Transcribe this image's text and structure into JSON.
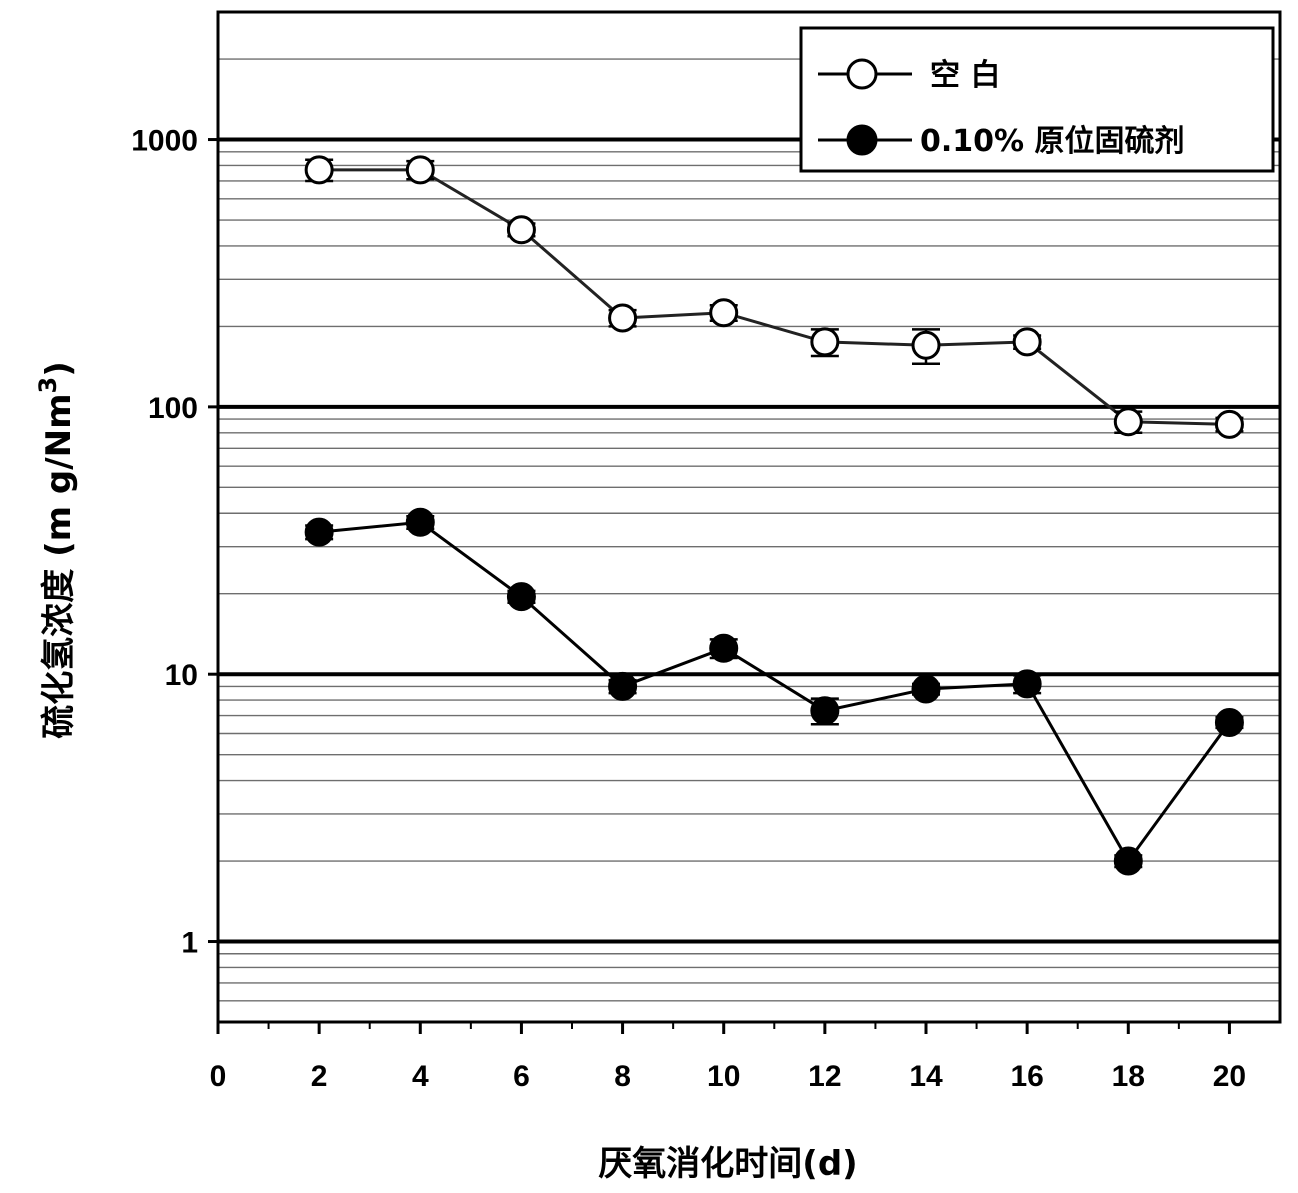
{
  "chart_data": {
    "type": "line",
    "title": "",
    "xlabel": "厌氧消化时间(d)",
    "ylabel": "硫化氢浓度 (m g/Nm³)",
    "ylabel_main": "硫化氢浓度 (m g/Nm",
    "ylabel_sup": "3",
    "ylabel_close": ")",
    "xlim": [
      0,
      21
    ],
    "ylim": [
      0.5,
      3000
    ],
    "yscale": "log",
    "xticks": [
      0,
      2,
      4,
      6,
      8,
      10,
      12,
      14,
      16,
      18,
      20
    ],
    "yticks": [
      1,
      10,
      100,
      1000
    ],
    "grid": "horizontal, log scale (major and minor)",
    "legend_position": "top-right",
    "series": [
      {
        "name": "空 白",
        "marker": "open-circle",
        "x": [
          2,
          4,
          6,
          8,
          10,
          12,
          14,
          16,
          18,
          20
        ],
        "y": [
          770,
          770,
          460,
          215,
          225,
          175,
          170,
          175,
          88,
          86
        ],
        "err": [
          70,
          60,
          25,
          15,
          15,
          20,
          25,
          10,
          8,
          5
        ]
      },
      {
        "name": "0.10% 原位固硫剂",
        "marker": "filled-circle",
        "x": [
          2,
          4,
          6,
          8,
          10,
          12,
          14,
          16,
          18,
          20
        ],
        "y": [
          34,
          37,
          19.5,
          9,
          12.5,
          7.3,
          8.8,
          9.2,
          2.0,
          6.6
        ],
        "err": [
          2,
          2,
          1,
          0.5,
          1,
          0.8,
          0.4,
          0.7,
          0.1,
          0.3
        ]
      }
    ]
  }
}
